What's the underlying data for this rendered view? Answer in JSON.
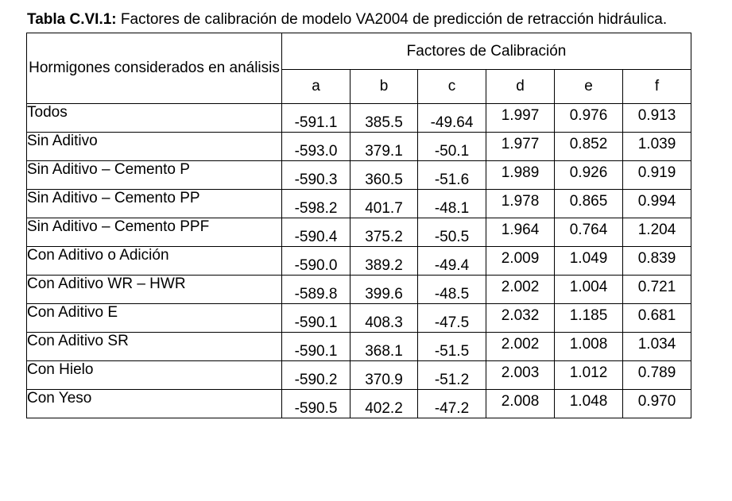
{
  "caption": {
    "label": "Tabla C.VI.1:",
    "text": "Factores de calibración de modelo VA2004 de predicción de retracción hidráulica."
  },
  "table": {
    "row_header": "Hormigones considerados en análisis",
    "group_header": "Factores de Calibración",
    "columns": [
      "a",
      "b",
      "c",
      "d",
      "e",
      "f"
    ],
    "rows": [
      {
        "name": "Todos",
        "values": [
          "-591.1",
          "385.5",
          "-49.64",
          "1.997",
          "0.976",
          "0.913"
        ]
      },
      {
        "name": "Sin Aditivo",
        "values": [
          "-593.0",
          "379.1",
          "-50.1",
          "1.977",
          "0.852",
          "1.039"
        ]
      },
      {
        "name": "Sin Aditivo – Cemento P",
        "values": [
          "-590.3",
          "360.5",
          "-51.6",
          "1.989",
          "0.926",
          "0.919"
        ]
      },
      {
        "name": "Sin Aditivo – Cemento PP",
        "values": [
          "-598.2",
          "401.7",
          "-48.1",
          "1.978",
          "0.865",
          "0.994"
        ]
      },
      {
        "name": "Sin Aditivo – Cemento PPF",
        "values": [
          "-590.4",
          "375.2",
          "-50.5",
          "1.964",
          "0.764",
          "1.204"
        ]
      },
      {
        "name": "Con Aditivo o Adición",
        "values": [
          "-590.0",
          "389.2",
          "-49.4",
          "2.009",
          "1.049",
          "0.839"
        ]
      },
      {
        "name": "Con Aditivo WR – HWR",
        "values": [
          "-589.8",
          "399.6",
          "-48.5",
          "2.002",
          "1.004",
          "0.721"
        ]
      },
      {
        "name": "Con Aditivo E",
        "values": [
          "-590.1",
          "408.3",
          "-47.5",
          "2.032",
          "1.185",
          "0.681"
        ]
      },
      {
        "name": "Con Aditivo SR",
        "values": [
          "-590.1",
          "368.1",
          "-51.5",
          "2.002",
          "1.008",
          "1.034"
        ]
      },
      {
        "name": "Con Hielo",
        "values": [
          "-590.2",
          "370.9",
          "-51.2",
          "2.003",
          "1.012",
          "0.789"
        ]
      },
      {
        "name": "Con Yeso",
        "values": [
          "-590.5",
          "402.2",
          "-47.2",
          "2.008",
          "1.048",
          "0.970"
        ]
      }
    ]
  }
}
